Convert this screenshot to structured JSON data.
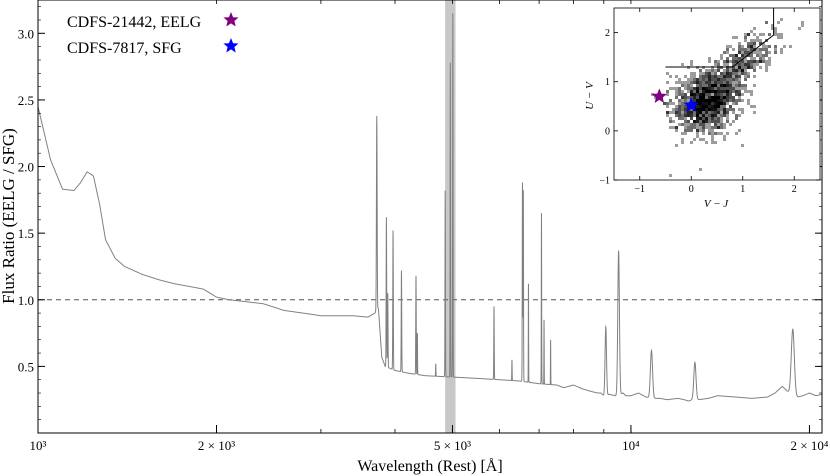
{
  "chart_data": {
    "type": "line",
    "xlabel": "Wavelength (Rest) [Å]",
    "ylabel": "Flux Ratio (EELG / SFG)",
    "xscale": "log",
    "xlim": [
      1000,
      21000
    ],
    "ylim": [
      0.0,
      3.25
    ],
    "x_ticks": [
      1000,
      2000,
      5000,
      10000,
      20000
    ],
    "x_tick_labels": [
      "10³",
      "2 × 10³",
      "5 × 10³",
      "10⁴",
      "2 × 10⁴"
    ],
    "y_ticks": [
      0.5,
      1.0,
      1.5,
      2.0,
      2.5,
      3.0
    ],
    "y_tick_labels": [
      "0.5",
      "1.0",
      "1.5",
      "2.0",
      "2.5",
      "3.0"
    ],
    "reference_line": {
      "y": 1.0,
      "style": "dashed",
      "color": "#555555"
    },
    "shaded_band": {
      "x": [
        4860,
        5060
      ],
      "color": "#c8c8c8"
    },
    "legend": {
      "placement": "top-left",
      "entries": [
        {
          "label": "CDFS-21442, EELG",
          "marker": "star",
          "color": "#800080"
        },
        {
          "label": "CDFS-7817, SFG",
          "marker": "star",
          "color": "#0000ff"
        }
      ]
    },
    "continuum": {
      "color": "#808080",
      "x": [
        1000,
        1050,
        1100,
        1150,
        1180,
        1210,
        1240,
        1270,
        1300,
        1350,
        1400,
        1500,
        1600,
        1700,
        1800,
        1850,
        1900,
        1950,
        2000,
        2100,
        2200,
        2400,
        2600,
        2800,
        2900,
        3000,
        3200,
        3400,
        3600,
        3700,
        3750,
        3800,
        3850,
        3900,
        4000,
        4200,
        4500,
        5000,
        5500,
        6000,
        6500,
        7000,
        7500,
        7700,
        8000,
        8300,
        8600,
        8800,
        8900,
        9000,
        9200,
        9400,
        9500,
        9600,
        9700,
        9800,
        10000,
        10300,
        10600,
        10900,
        11200,
        11500,
        12000,
        12300,
        12500,
        12700,
        13000,
        13500,
        14000,
        15000,
        16000,
        17000,
        17500,
        18000,
        18500,
        18800,
        19100,
        19500,
        20000,
        20500,
        21000
      ],
      "y": [
        2.45,
        2.05,
        1.83,
        1.82,
        1.88,
        1.96,
        1.93,
        1.72,
        1.45,
        1.31,
        1.25,
        1.19,
        1.15,
        1.12,
        1.1,
        1.09,
        1.08,
        1.05,
        1.02,
        1.0,
        0.99,
        0.97,
        0.92,
        0.9,
        0.89,
        0.88,
        0.88,
        0.88,
        0.87,
        0.9,
        0.94,
        0.57,
        0.5,
        0.49,
        0.47,
        0.45,
        0.43,
        0.42,
        0.41,
        0.4,
        0.39,
        0.37,
        0.36,
        0.34,
        0.36,
        0.33,
        0.31,
        0.3,
        0.3,
        0.28,
        0.29,
        0.28,
        0.28,
        0.29,
        0.3,
        0.28,
        0.28,
        0.3,
        0.27,
        0.26,
        0.26,
        0.25,
        0.26,
        0.25,
        0.24,
        0.25,
        0.25,
        0.26,
        0.28,
        0.27,
        0.26,
        0.27,
        0.3,
        0.35,
        0.3,
        0.28,
        0.27,
        0.28,
        0.3,
        0.28,
        0.29
      ]
    },
    "emission_lines": [
      {
        "x": 3727,
        "peak": 2.38,
        "width": 5
      },
      {
        "x": 3869,
        "peak": 1.62,
        "width": 4
      },
      {
        "x": 3889,
        "peak": 1.05,
        "width": 4
      },
      {
        "x": 3970,
        "peak": 1.52,
        "width": 4
      },
      {
        "x": 4102,
        "peak": 1.22,
        "width": 4
      },
      {
        "x": 4340,
        "peak": 1.18,
        "width": 4
      },
      {
        "x": 4363,
        "peak": 0.75,
        "width": 3
      },
      {
        "x": 4686,
        "peak": 0.52,
        "width": 3
      },
      {
        "x": 4861,
        "peak": 1.82,
        "width": 4
      },
      {
        "x": 4959,
        "peak": 2.78,
        "width": 4
      },
      {
        "x": 5007,
        "peak": 3.15,
        "width": 4
      },
      {
        "x": 5876,
        "peak": 0.95,
        "width": 5
      },
      {
        "x": 6300,
        "peak": 0.55,
        "width": 4
      },
      {
        "x": 6563,
        "peak": 1.88,
        "width": 6
      },
      {
        "x": 6584,
        "peak": 1.82,
        "width": 5
      },
      {
        "x": 6717,
        "peak": 1.12,
        "width": 4
      },
      {
        "x": 7065,
        "peak": 1.65,
        "width": 5
      },
      {
        "x": 7136,
        "peak": 0.85,
        "width": 4
      },
      {
        "x": 7320,
        "peak": 0.7,
        "width": 4
      },
      {
        "x": 9069,
        "peak": 0.8,
        "width": 25
      },
      {
        "x": 9532,
        "peak": 1.37,
        "width": 30
      },
      {
        "x": 10830,
        "peak": 0.62,
        "width": 45
      },
      {
        "x": 12820,
        "peak": 0.53,
        "width": 55
      },
      {
        "x": 18750,
        "peak": 0.78,
        "width": 110
      }
    ],
    "inset": {
      "type": "scatter",
      "xlabel": "V − J",
      "ylabel": "U − V",
      "xlim": [
        -1.5,
        2.5
      ],
      "ylim": [
        -1.0,
        2.5
      ],
      "x_ticks": [
        -1,
        0,
        1,
        2
      ],
      "y_ticks": [
        -1,
        0,
        1,
        2
      ],
      "selection_boundary": {
        "x": [
          -0.5,
          0.8,
          1.6,
          1.6
        ],
        "y": [
          1.3,
          1.3,
          1.95,
          2.5
        ]
      },
      "density_clusters": [
        {
          "cx": 0.3,
          "cy": 0.6,
          "sx": 0.35,
          "sy": 0.28,
          "rot": 40,
          "n": 1300
        },
        {
          "cx": 1.05,
          "cy": 1.45,
          "sx": 0.45,
          "sy": 0.18,
          "rot": 42,
          "n": 380
        }
      ],
      "points": [
        {
          "name": "CDFS-21442, EELG",
          "x": -0.62,
          "y": 0.7,
          "color": "#800080"
        },
        {
          "name": "CDFS-7817, SFG",
          "x": 0.0,
          "y": 0.52,
          "color": "#0000ff"
        }
      ]
    }
  }
}
